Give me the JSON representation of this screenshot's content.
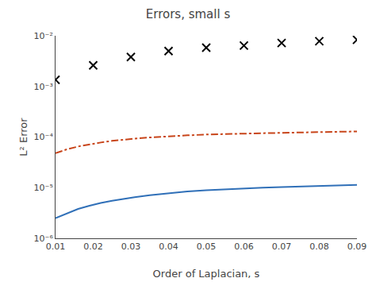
{
  "chart_data": {
    "type": "line",
    "title": "Errors, small s",
    "xlabel": "Order of Laplacian, s",
    "ylabel": "L² Error",
    "log": "y",
    "grid": false,
    "xlim": [
      0.01,
      0.09
    ],
    "ylim": [
      1e-06,
      0.01
    ],
    "xticks": [
      0.01,
      0.02,
      0.03,
      0.04,
      0.05,
      0.06,
      0.07,
      0.08,
      0.09
    ],
    "yticks": [
      {
        "value": 1e-06,
        "label": "10⁻⁶"
      },
      {
        "value": 1e-05,
        "label": "10⁻⁵"
      },
      {
        "value": 0.0001,
        "label": "10⁻⁴"
      },
      {
        "value": 0.001,
        "label": "10⁻³"
      },
      {
        "value": 0.01,
        "label": "10⁻²"
      }
    ],
    "series": [
      {
        "type": "line",
        "color": "#3070b8",
        "line_style": "solid",
        "x": [
          0.01,
          0.013,
          0.016,
          0.019,
          0.022,
          0.025,
          0.028,
          0.031,
          0.035,
          0.04,
          0.045,
          0.05,
          0.055,
          0.06,
          0.065,
          0.07,
          0.075,
          0.08,
          0.085,
          0.09
        ],
        "values": [
          2.5e-06,
          3.1e-06,
          3.8e-06,
          4.4e-06,
          5e-06,
          5.5e-06,
          6e-06,
          6.5e-06,
          7.1e-06,
          7.8e-06,
          8.4e-06,
          8.9e-06,
          9.3e-06,
          9.7e-06,
          1e-05,
          1.03e-05,
          1.06e-05,
          1.08e-05,
          1.11e-05,
          1.13e-05
        ]
      },
      {
        "type": "line",
        "color": "#c8451a",
        "line_style": "dashdot",
        "x": [
          0.01,
          0.013,
          0.016,
          0.019,
          0.022,
          0.025,
          0.028,
          0.031,
          0.035,
          0.04,
          0.045,
          0.05,
          0.055,
          0.06,
          0.065,
          0.07,
          0.075,
          0.08,
          0.085,
          0.09
        ],
        "values": [
          4.8e-05,
          5.7e-05,
          6.5e-05,
          7.2e-05,
          7.8e-05,
          8.4e-05,
          8.9e-05,
          9.3e-05,
          9.8e-05,
          0.000104,
          0.000108,
          0.000112,
          0.000115,
          0.000117,
          0.000119,
          0.000121,
          0.000123,
          0.000125,
          0.000127,
          0.000129
        ]
      },
      {
        "type": "scatter",
        "color": "#000000",
        "marker": "x",
        "x": [
          0.01,
          0.02,
          0.03,
          0.04,
          0.05,
          0.06,
          0.07,
          0.08,
          0.09
        ],
        "values": [
          0.00135,
          0.0026,
          0.0038,
          0.005,
          0.0058,
          0.0064,
          0.0072,
          0.0078,
          0.0083
        ]
      }
    ]
  }
}
